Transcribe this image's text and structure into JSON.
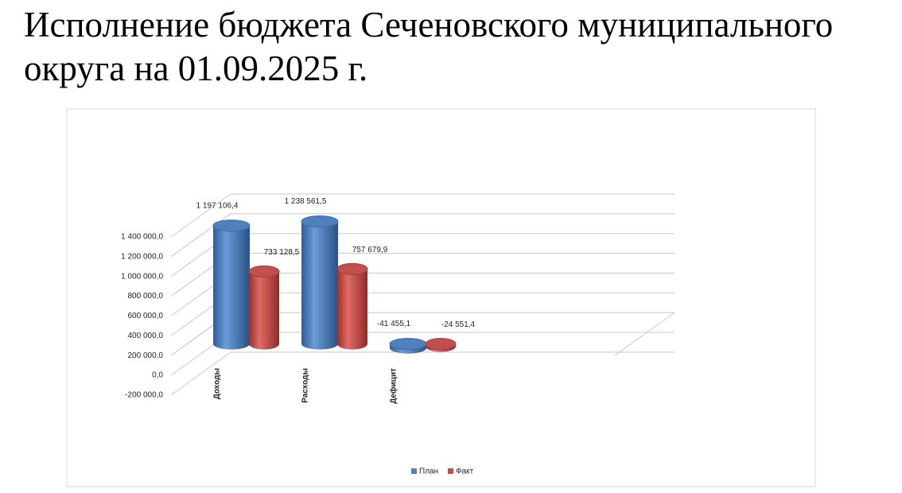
{
  "chart_data": {
    "type": "bar3d",
    "title": "Исполнение бюджета Сеченовского муниципального округа на 01.09.2025 г.",
    "categories": [
      "Доходы",
      "Расходы",
      "Дефицит"
    ],
    "series": [
      {
        "name": "План",
        "color": "#4f81bd",
        "values": [
          1197106.4,
          1238561.5,
          -41455.1
        ],
        "value_labels": [
          "1 197 106,4",
          "1 238 561,5",
          "-41 455,1"
        ]
      },
      {
        "name": "Факт",
        "color": "#c0504d",
        "values": [
          733128.5,
          757679.9,
          -24551.4
        ],
        "value_labels": [
          "733 128,5",
          "757 679,9",
          "-24 551,4"
        ]
      }
    ],
    "ylim": [
      -200000,
      1400000
    ],
    "yticks": [
      {
        "value": -200000,
        "label": "-200 000,0"
      },
      {
        "value": 0,
        "label": "0,0"
      },
      {
        "value": 200000,
        "label": "200 000,0"
      },
      {
        "value": 400000,
        "label": "400 000,0"
      },
      {
        "value": 600000,
        "label": "600 000,0"
      },
      {
        "value": 800000,
        "label": "800 000,0"
      },
      {
        "value": 1000000,
        "label": "1 000 000,0"
      },
      {
        "value": 1200000,
        "label": "1 200 000,0"
      },
      {
        "value": 1400000,
        "label": "1 400 000,0"
      }
    ],
    "grid": true,
    "legend": "bottom"
  }
}
